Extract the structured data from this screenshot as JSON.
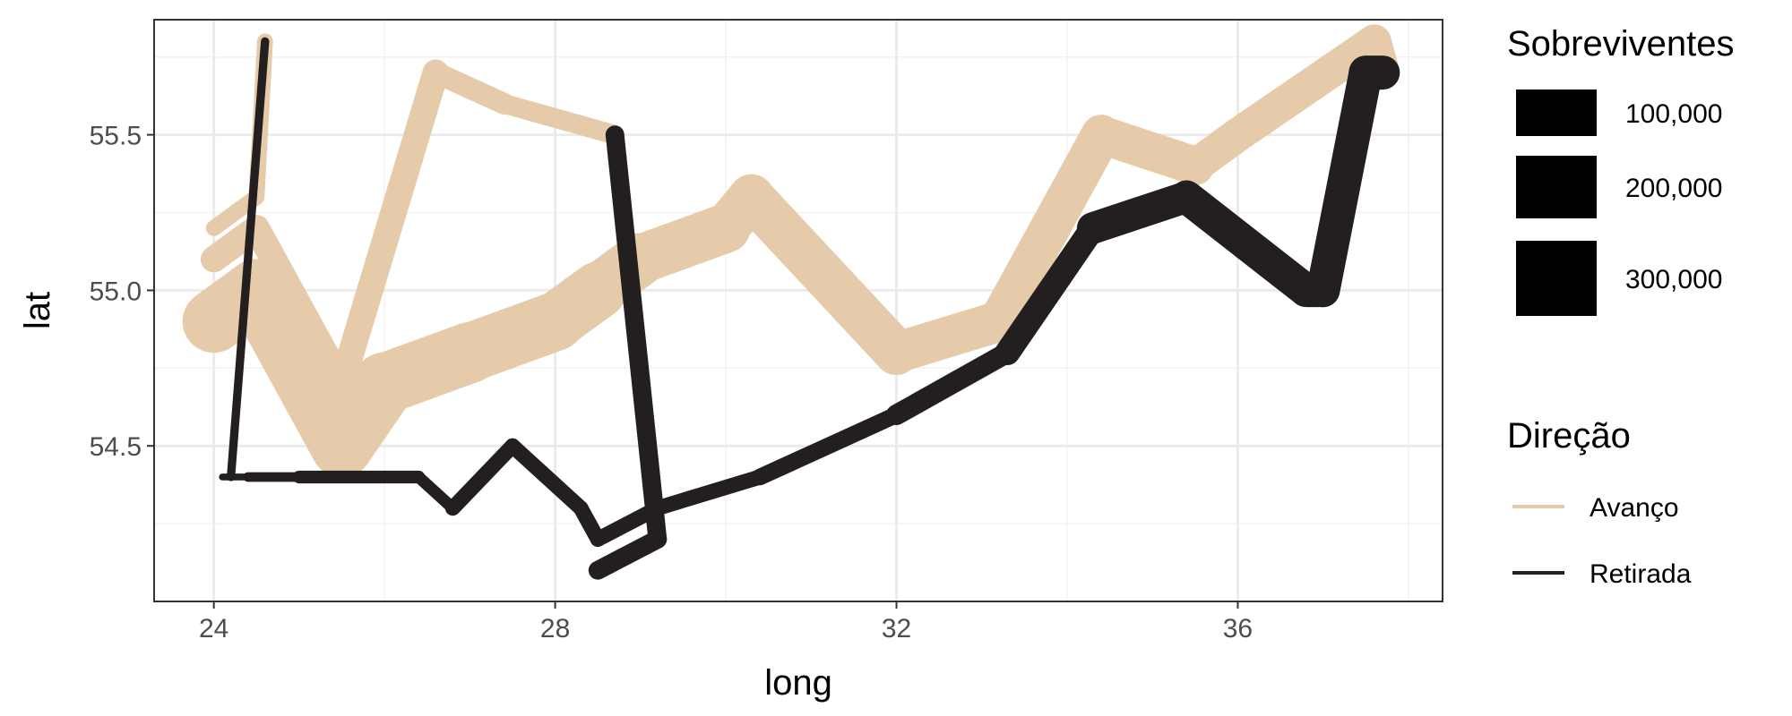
{
  "chart_data": {
    "type": "line",
    "title": "",
    "xlabel": "long",
    "ylabel": "lat",
    "xlim": [
      23.3,
      38.4
    ],
    "ylim": [
      54.0,
      55.87
    ],
    "x_ticks": [
      24,
      28,
      32,
      36
    ],
    "x_tick_labels": [
      "24",
      "28",
      "32",
      "36"
    ],
    "y_ticks": [
      54.5,
      55.0,
      55.5
    ],
    "y_tick_labels": [
      "54.5",
      "55.0",
      "55.5"
    ],
    "grid": true,
    "legend_position": "right",
    "size_legend": {
      "title": "Sobreviventes",
      "breaks": [
        100000,
        200000,
        300000
      ],
      "labels": [
        "100,000",
        "200,000",
        "300,000"
      ]
    },
    "color_legend": {
      "title": "Direção",
      "entries": [
        {
          "label": "Avanço",
          "color": "#e6cbaa"
        },
        {
          "label": "Retirada",
          "color": "#231f20"
        }
      ]
    },
    "series": [
      {
        "name": "Avanço",
        "color": "#e6cbaa",
        "points": [
          {
            "x": 24.0,
            "y": 54.9,
            "survivors": 340000
          },
          {
            "x": 24.5,
            "y": 55.0,
            "survivors": 340000
          },
          {
            "x": 25.5,
            "y": 54.5,
            "survivors": 340000
          },
          {
            "x": 26.0,
            "y": 54.7,
            "survivors": 320000
          },
          {
            "x": 27.0,
            "y": 54.8,
            "survivors": 300000
          },
          {
            "x": 28.0,
            "y": 54.9,
            "survivors": 280000
          },
          {
            "x": 28.5,
            "y": 55.0,
            "survivors": 240000
          },
          {
            "x": 29.0,
            "y": 55.1,
            "survivors": 210000
          },
          {
            "x": 30.0,
            "y": 55.2,
            "survivors": 180000
          },
          {
            "x": 30.3,
            "y": 55.3,
            "survivors": 175000
          },
          {
            "x": 32.0,
            "y": 54.8,
            "survivors": 145000
          },
          {
            "x": 33.2,
            "y": 54.9,
            "survivors": 140000
          },
          {
            "x": 34.4,
            "y": 55.5,
            "survivors": 127100
          },
          {
            "x": 35.5,
            "y": 55.4,
            "survivors": 100000
          },
          {
            "x": 36.0,
            "y": 55.5,
            "survivors": 100000
          },
          {
            "x": 37.6,
            "y": 55.8,
            "survivors": 100000
          },
          {
            "x": 37.7,
            "y": 55.7,
            "survivors": 100000
          }
        ]
      },
      {
        "name": "Avanço",
        "color": "#e6cbaa",
        "points": [
          {
            "x": 24.0,
            "y": 55.1,
            "survivors": 60000
          },
          {
            "x": 24.5,
            "y": 55.2,
            "survivors": 60000
          },
          {
            "x": 25.5,
            "y": 54.7,
            "survivors": 60000
          },
          {
            "x": 26.6,
            "y": 55.7,
            "survivors": 40000
          },
          {
            "x": 27.4,
            "y": 55.6,
            "survivors": 33000
          },
          {
            "x": 28.7,
            "y": 55.5,
            "survivors": 33000
          }
        ]
      },
      {
        "name": "Avanço",
        "color": "#e6cbaa",
        "points": [
          {
            "x": 24.0,
            "y": 55.2,
            "survivors": 22000
          },
          {
            "x": 24.5,
            "y": 55.3,
            "survivors": 22000
          },
          {
            "x": 24.6,
            "y": 55.8,
            "survivors": 6000
          }
        ]
      },
      {
        "name": "Retirada",
        "color": "#231f20",
        "points": [
          {
            "x": 37.7,
            "y": 55.7,
            "survivors": 100000
          },
          {
            "x": 37.5,
            "y": 55.7,
            "survivors": 98000
          },
          {
            "x": 37.0,
            "y": 55.0,
            "survivors": 97000
          },
          {
            "x": 36.8,
            "y": 55.0,
            "survivors": 96000
          },
          {
            "x": 35.4,
            "y": 55.3,
            "survivors": 87000
          },
          {
            "x": 34.3,
            "y": 55.2,
            "survivors": 55000
          },
          {
            "x": 33.3,
            "y": 54.8,
            "survivors": 37000
          },
          {
            "x": 32.0,
            "y": 54.6,
            "survivors": 24000
          },
          {
            "x": 30.4,
            "y": 54.4,
            "survivors": 20000
          },
          {
            "x": 29.2,
            "y": 54.3,
            "survivors": 20000
          },
          {
            "x": 28.5,
            "y": 54.2,
            "survivors": 20000
          },
          {
            "x": 28.3,
            "y": 54.3,
            "survivors": 20000
          },
          {
            "x": 27.5,
            "y": 54.5,
            "survivors": 20000
          },
          {
            "x": 26.8,
            "y": 54.3,
            "survivors": 12000
          },
          {
            "x": 26.4,
            "y": 54.4,
            "survivors": 14000
          },
          {
            "x": 25.0,
            "y": 54.4,
            "survivors": 8000
          },
          {
            "x": 24.4,
            "y": 54.4,
            "survivors": 4000
          },
          {
            "x": 24.2,
            "y": 54.4,
            "survivors": 4000
          },
          {
            "x": 24.1,
            "y": 54.4,
            "survivors": 4000
          }
        ]
      },
      {
        "name": "Retirada",
        "color": "#231f20",
        "points": [
          {
            "x": 28.7,
            "y": 55.5,
            "survivors": 30000
          },
          {
            "x": 29.2,
            "y": 54.2,
            "survivors": 30000
          },
          {
            "x": 28.5,
            "y": 54.1,
            "survivors": 28000
          }
        ]
      },
      {
        "name": "Retirada",
        "color": "#231f20",
        "points": [
          {
            "x": 24.6,
            "y": 55.8,
            "survivors": 6000
          },
          {
            "x": 24.2,
            "y": 54.4,
            "survivors": 6000
          }
        ]
      }
    ]
  }
}
